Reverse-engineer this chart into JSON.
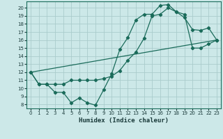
{
  "xlabel": "Humidex (Indice chaleur)",
  "bg_color": "#cce8e8",
  "grid_color": "#aacccc",
  "line_color": "#1a6b5a",
  "xlim": [
    -0.5,
    23.5
  ],
  "ylim": [
    7.5,
    20.8
  ],
  "xticks": [
    0,
    1,
    2,
    3,
    4,
    5,
    6,
    7,
    8,
    9,
    10,
    11,
    12,
    13,
    14,
    15,
    16,
    17,
    18,
    19,
    20,
    21,
    22,
    23
  ],
  "yticks": [
    8,
    9,
    10,
    11,
    12,
    13,
    14,
    15,
    16,
    17,
    18,
    19,
    20
  ],
  "line1_x": [
    0,
    1,
    2,
    3,
    4,
    5,
    6,
    7,
    8,
    9,
    10,
    11,
    12,
    13,
    14,
    15,
    16,
    17,
    18,
    19,
    20,
    21,
    22,
    23
  ],
  "line1_y": [
    12,
    10.5,
    10.5,
    9.5,
    9.5,
    8.2,
    8.8,
    8.2,
    7.9,
    9.8,
    11.8,
    14.8,
    16.3,
    18.5,
    19.2,
    19.2,
    20.3,
    20.4,
    19.5,
    18.8,
    17.3,
    17.2,
    17.5,
    16.0
  ],
  "line2_x": [
    0,
    1,
    2,
    3,
    4,
    5,
    6,
    7,
    8,
    9,
    10,
    11,
    12,
    13,
    14,
    15,
    16,
    17,
    18,
    19,
    20,
    21,
    22,
    23
  ],
  "line2_y": [
    12,
    10.5,
    10.5,
    10.5,
    10.5,
    11.0,
    11.0,
    11.0,
    11.0,
    11.2,
    11.5,
    12.2,
    13.5,
    14.5,
    16.2,
    19.0,
    19.2,
    20.0,
    19.5,
    19.2,
    15.0,
    15.0,
    15.5,
    16.0
  ],
  "line3_x": [
    0,
    23
  ],
  "line3_y": [
    12,
    16.0
  ]
}
